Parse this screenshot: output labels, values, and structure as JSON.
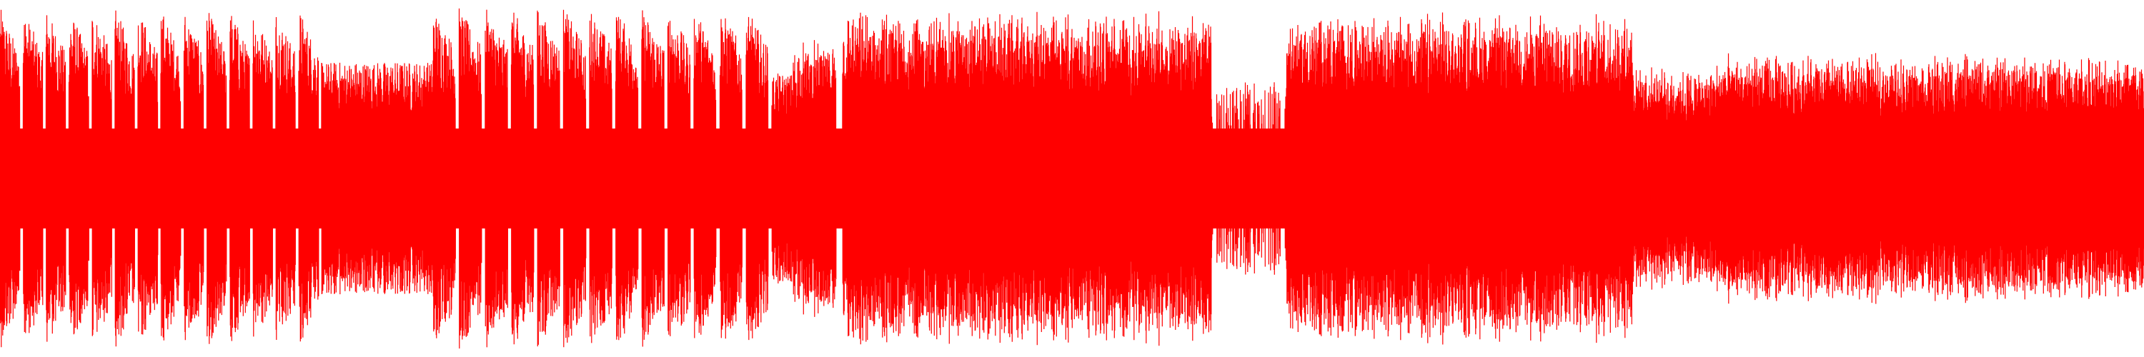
{
  "waveform": {
    "color": "#ff0000",
    "background": "#ffffff",
    "symmetric_about_center": true,
    "segments": [
      {
        "start": 0.0,
        "end": 0.15,
        "pattern": "bursts",
        "count": 14,
        "peak": 0.98,
        "floor": 0.68,
        "gap_level": 0.18
      },
      {
        "start": 0.15,
        "end": 0.202,
        "pattern": "flat",
        "peak": 0.67
      },
      {
        "start": 0.202,
        "end": 0.36,
        "pattern": "bursts",
        "count": 13,
        "peak": 0.98,
        "floor": 0.72,
        "gap_level": 0.25
      },
      {
        "start": 0.36,
        "end": 0.37,
        "pattern": "flat",
        "peak": 0.6
      },
      {
        "start": 0.37,
        "end": 0.39,
        "pattern": "dense",
        "peak": 0.8
      },
      {
        "start": 0.39,
        "end": 0.393,
        "pattern": "flat",
        "peak": 0.05
      },
      {
        "start": 0.393,
        "end": 0.565,
        "pattern": "dense",
        "peak": 0.97
      },
      {
        "start": 0.565,
        "end": 0.6,
        "pattern": "sparse",
        "peak": 0.55
      },
      {
        "start": 0.6,
        "end": 0.762,
        "pattern": "dense",
        "peak": 0.96
      },
      {
        "start": 0.762,
        "end": 0.8,
        "pattern": "dense",
        "peak": 0.65
      },
      {
        "start": 0.8,
        "end": 1.0,
        "pattern": "dense",
        "peak": 0.72
      }
    ]
  }
}
